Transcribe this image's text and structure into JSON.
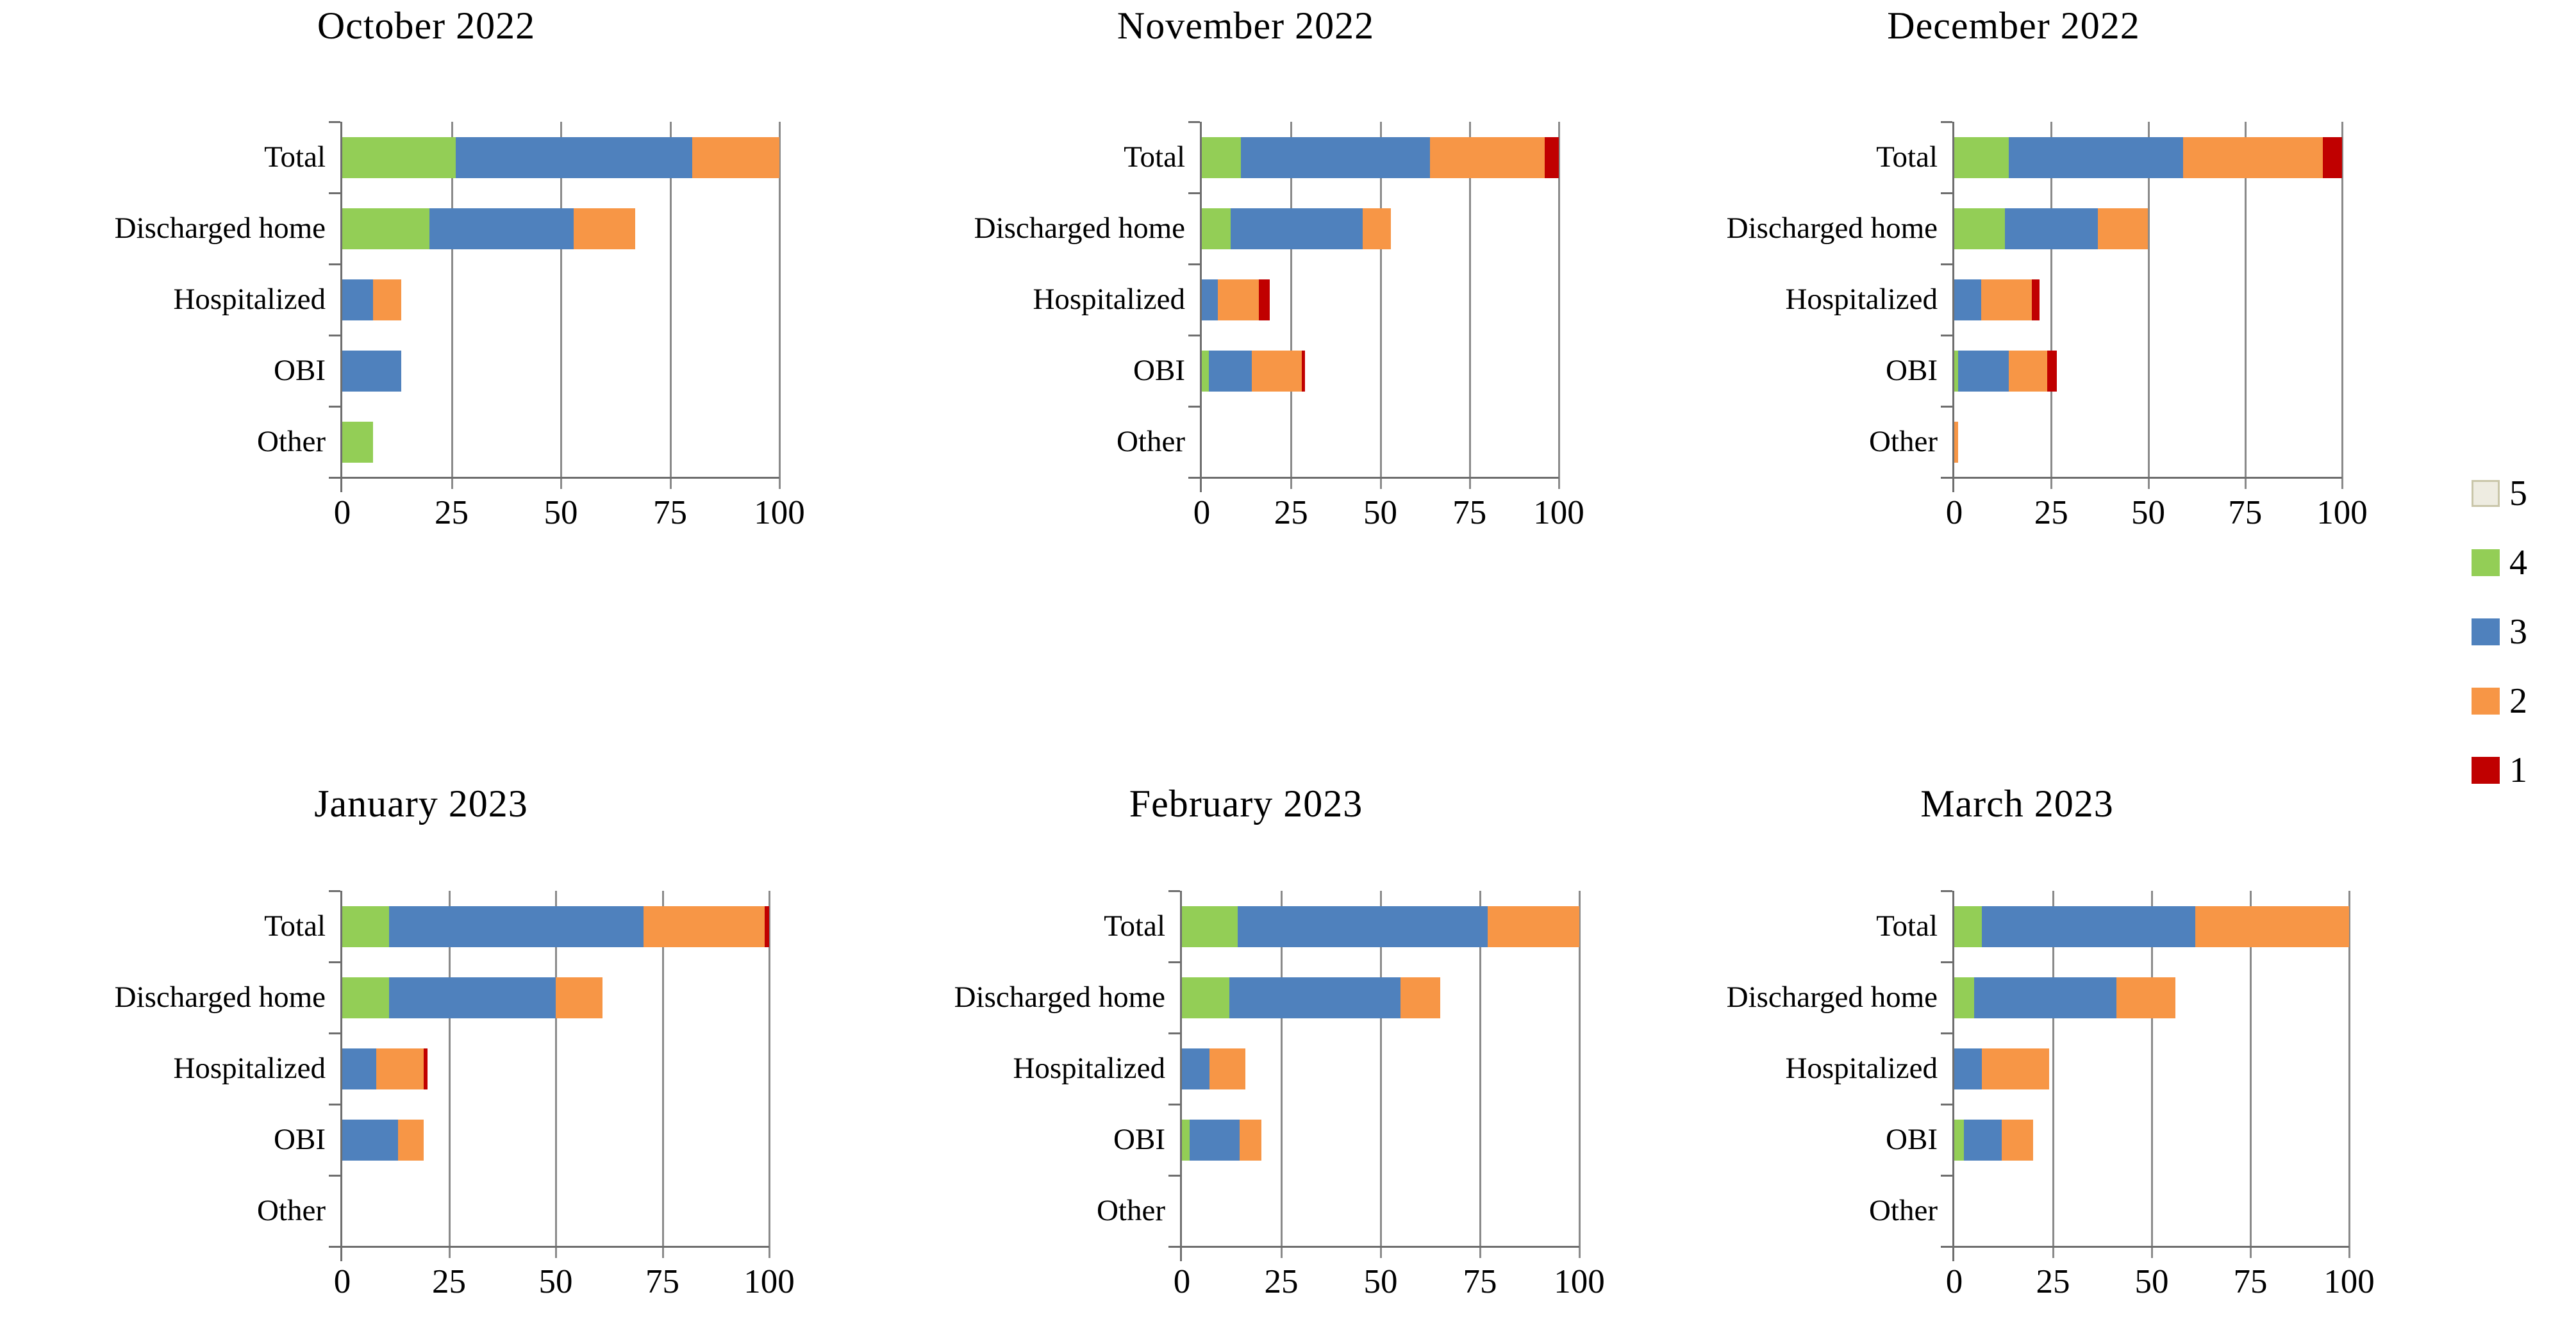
{
  "series_colors": {
    "5": "#EEECE1",
    "4": "#93CE56",
    "3": "#4F81BD",
    "2": "#F79646",
    "1": "#C00000"
  },
  "legend": {
    "position": "right-center",
    "items": [
      {
        "label": "5",
        "color": "#EEECE1",
        "border": "#C9C6A9"
      },
      {
        "label": "4",
        "color": "#93CE56"
      },
      {
        "label": "3",
        "color": "#4F81BD"
      },
      {
        "label": "2",
        "color": "#F79646"
      },
      {
        "label": "1",
        "color": "#C00000"
      }
    ]
  },
  "x_axis": {
    "ticks": [
      "0",
      "25",
      "50",
      "75",
      "100"
    ],
    "range": [
      0,
      100
    ],
    "grid": true
  },
  "chart_data": [
    {
      "type": "bar",
      "orientation": "horizontal",
      "stacked": true,
      "title": "October 2022",
      "categories": [
        "Total",
        "Discharged home",
        "Hospitalized",
        "OBI",
        "Other"
      ],
      "xlim": [
        0,
        100
      ],
      "series": [
        {
          "name": "4",
          "values": [
            26,
            20,
            0,
            0,
            7
          ]
        },
        {
          "name": "3",
          "values": [
            54,
            33,
            7,
            13.5,
            0
          ]
        },
        {
          "name": "2",
          "values": [
            20,
            14,
            6.5,
            0,
            0
          ]
        },
        {
          "name": "1",
          "values": [
            0,
            0,
            0,
            0,
            0
          ]
        }
      ]
    },
    {
      "type": "bar",
      "orientation": "horizontal",
      "stacked": true,
      "title": "November 2022",
      "categories": [
        "Total",
        "Discharged home",
        "Hospitalized",
        "OBI",
        "Other"
      ],
      "xlim": [
        0,
        100
      ],
      "series": [
        {
          "name": "4",
          "values": [
            11,
            8,
            0,
            2,
            0
          ]
        },
        {
          "name": "3",
          "values": [
            53,
            37,
            4.5,
            12,
            0
          ]
        },
        {
          "name": "2",
          "values": [
            32,
            8,
            11.5,
            14,
            0
          ]
        },
        {
          "name": "1",
          "values": [
            4,
            0,
            3,
            1,
            0
          ]
        }
      ]
    },
    {
      "type": "bar",
      "orientation": "horizontal",
      "stacked": true,
      "title": "December 2022",
      "categories": [
        "Total",
        "Discharged home",
        "Hospitalized",
        "OBI",
        "Other"
      ],
      "xlim": [
        0,
        100
      ],
      "series": [
        {
          "name": "4",
          "values": [
            14,
            13,
            0,
            1,
            0
          ]
        },
        {
          "name": "3",
          "values": [
            45,
            24,
            7,
            13,
            0
          ]
        },
        {
          "name": "2",
          "values": [
            36,
            13,
            13,
            10,
            1
          ]
        },
        {
          "name": "1",
          "values": [
            5,
            0,
            2,
            2.5,
            0
          ]
        }
      ]
    },
    {
      "type": "bar",
      "orientation": "horizontal",
      "stacked": true,
      "title": "January 2023",
      "categories": [
        "Total",
        "Discharged home",
        "Hospitalized",
        "OBI",
        "Other"
      ],
      "xlim": [
        0,
        100
      ],
      "series": [
        {
          "name": "4",
          "values": [
            11,
            11,
            0,
            0,
            0
          ]
        },
        {
          "name": "3",
          "values": [
            59.5,
            39,
            8,
            13,
            0
          ]
        },
        {
          "name": "2",
          "values": [
            28.5,
            11,
            11,
            6,
            0
          ]
        },
        {
          "name": "1",
          "values": [
            1,
            0,
            1,
            0,
            0
          ]
        }
      ]
    },
    {
      "type": "bar",
      "orientation": "horizontal",
      "stacked": true,
      "title": "February 2023",
      "categories": [
        "Total",
        "Discharged home",
        "Hospitalized",
        "OBI",
        "Other"
      ],
      "xlim": [
        0,
        100
      ],
      "series": [
        {
          "name": "4",
          "values": [
            14,
            12,
            0,
            2,
            0
          ]
        },
        {
          "name": "3",
          "values": [
            63,
            43,
            7,
            12.5,
            0
          ]
        },
        {
          "name": "2",
          "values": [
            23,
            10,
            9,
            5.5,
            0
          ]
        },
        {
          "name": "1",
          "values": [
            0,
            0,
            0,
            0,
            0
          ]
        }
      ]
    },
    {
      "type": "bar",
      "orientation": "horizontal",
      "stacked": true,
      "title": "March 2023",
      "categories": [
        "Total",
        "Discharged home",
        "Hospitalized",
        "OBI",
        "Other"
      ],
      "xlim": [
        0,
        100
      ],
      "series": [
        {
          "name": "4",
          "values": [
            7,
            5,
            0,
            2.5,
            0
          ]
        },
        {
          "name": "3",
          "values": [
            54,
            36,
            7,
            9.5,
            0
          ]
        },
        {
          "name": "2",
          "values": [
            39,
            15,
            17,
            8,
            0
          ]
        },
        {
          "name": "1",
          "values": [
            0,
            0,
            0,
            0,
            0
          ]
        }
      ]
    }
  ]
}
